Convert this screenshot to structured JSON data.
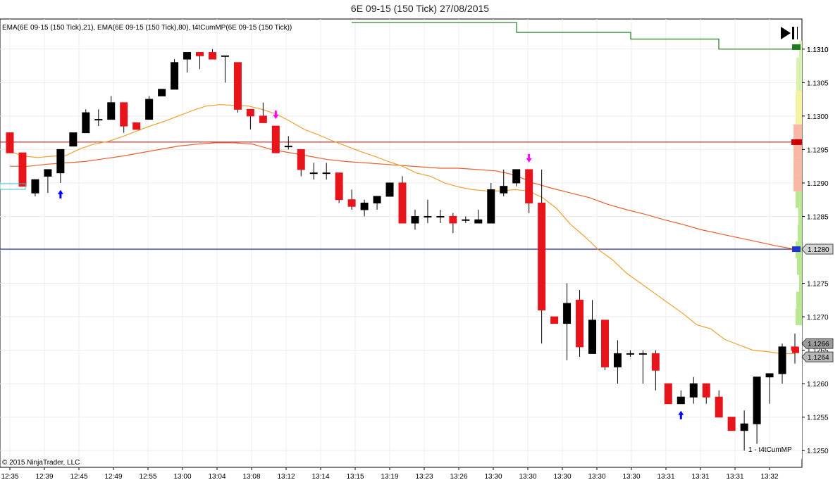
{
  "chart_data": {
    "type": "candlestick",
    "title": "6E 09-15 (150 Tick)  27/08/2015",
    "indicator_label": "EMA(6E 09-15 (150 Tick),21), EMA(6E 09-15 (150 Tick),80), t4tCumMP(6E 09-15 (150 Tick))",
    "copyright": "© 2015 NinjaTrader, LLC",
    "panel_label": "1 - t4tCumMP",
    "ylim": [
      1.12475,
      1.13145
    ],
    "y_ticks": [
      "1.1250",
      "1.1255",
      "1.1260",
      "1.1265",
      "1.1270",
      "1.1275",
      "1.1280",
      "1.1285",
      "1.1290",
      "1.1295",
      "1.1300",
      "1.1305",
      "1.1310"
    ],
    "x_ticks": [
      "12:35",
      "12:39",
      "12:45",
      "12:49",
      "12:55",
      "13:00",
      "13:04",
      "13:08",
      "13:12",
      "13:14",
      "13:15",
      "13:19",
      "13:23",
      "13:26",
      "13:30",
      "13:30",
      "13:30",
      "13:30",
      "13:30",
      "13:31",
      "13:31",
      "13:31",
      "13:32"
    ],
    "price_markers": {
      "green_level": "1.1310",
      "blue_level": "1.1280",
      "current_behind": "1.1266",
      "current": "1.1264"
    },
    "horizontal_lines": [
      {
        "value": 1.12961,
        "color": "#cc0000"
      },
      {
        "value": 1.12801,
        "color": "#00008b"
      }
    ],
    "candles": [
      {
        "o": 1.12975,
        "h": 1.12975,
        "l": 1.12945,
        "c": 1.12945
      },
      {
        "o": 1.12945,
        "h": 1.12945,
        "l": 1.12895,
        "c": 1.12895
      },
      {
        "o": 1.12885,
        "h": 1.12905,
        "l": 1.1288,
        "c": 1.12905
      },
      {
        "o": 1.1291,
        "h": 1.1292,
        "l": 1.12885,
        "c": 1.1292
      },
      {
        "o": 1.12915,
        "h": 1.1295,
        "l": 1.129,
        "c": 1.1295
      },
      {
        "o": 1.12955,
        "h": 1.12975,
        "l": 1.12955,
        "c": 1.12975
      },
      {
        "o": 1.12975,
        "h": 1.1301,
        "l": 1.12975,
        "c": 1.13005
      },
      {
        "o": 1.12995,
        "h": 1.1301,
        "l": 1.12985,
        "c": 1.12995
      },
      {
        "o": 1.12995,
        "h": 1.1303,
        "l": 1.12995,
        "c": 1.1302
      },
      {
        "o": 1.1302,
        "h": 1.1302,
        "l": 1.12975,
        "c": 1.12985
      },
      {
        "o": 1.1299,
        "h": 1.1299,
        "l": 1.1298,
        "c": 1.1298
      },
      {
        "o": 1.12995,
        "h": 1.1303,
        "l": 1.12995,
        "c": 1.13025
      },
      {
        "o": 1.1303,
        "h": 1.1304,
        "l": 1.1303,
        "c": 1.1304
      },
      {
        "o": 1.1304,
        "h": 1.13085,
        "l": 1.1304,
        "c": 1.1308
      },
      {
        "o": 1.13085,
        "h": 1.13095,
        "l": 1.13065,
        "c": 1.13095
      },
      {
        "o": 1.13095,
        "h": 1.13095,
        "l": 1.1307,
        "c": 1.1309
      },
      {
        "o": 1.13095,
        "h": 1.131,
        "l": 1.13085,
        "c": 1.13085
      },
      {
        "o": 1.1309,
        "h": 1.1309,
        "l": 1.1305,
        "c": 1.1309
      },
      {
        "o": 1.1308,
        "h": 1.1308,
        "l": 1.13005,
        "c": 1.1301
      },
      {
        "o": 1.1301,
        "h": 1.1301,
        "l": 1.1298,
        "c": 1.13
      },
      {
        "o": 1.13,
        "h": 1.1302,
        "l": 1.1299,
        "c": 1.1299
      },
      {
        "o": 1.12985,
        "h": 1.12985,
        "l": 1.12945,
        "c": 1.12945
      },
      {
        "o": 1.12955,
        "h": 1.1297,
        "l": 1.1295,
        "c": 1.12955
      },
      {
        "o": 1.1295,
        "h": 1.1295,
        "l": 1.1291,
        "c": 1.1292
      },
      {
        "o": 1.12915,
        "h": 1.1293,
        "l": 1.12905,
        "c": 1.12915
      },
      {
        "o": 1.12915,
        "h": 1.1293,
        "l": 1.12905,
        "c": 1.12915
      },
      {
        "o": 1.12915,
        "h": 1.12915,
        "l": 1.1287,
        "c": 1.12875
      },
      {
        "o": 1.12875,
        "h": 1.1289,
        "l": 1.1286,
        "c": 1.12865
      },
      {
        "o": 1.1286,
        "h": 1.12875,
        "l": 1.1285,
        "c": 1.1287
      },
      {
        "o": 1.1287,
        "h": 1.1288,
        "l": 1.1286,
        "c": 1.1288
      },
      {
        "o": 1.1288,
        "h": 1.129,
        "l": 1.1288,
        "c": 1.129
      },
      {
        "o": 1.129,
        "h": 1.1291,
        "l": 1.1284,
        "c": 1.1284
      },
      {
        "o": 1.1284,
        "h": 1.1286,
        "l": 1.1283,
        "c": 1.1285
      },
      {
        "o": 1.1285,
        "h": 1.12875,
        "l": 1.1284,
        "c": 1.1285
      },
      {
        "o": 1.1285,
        "h": 1.1286,
        "l": 1.1284,
        "c": 1.1285
      },
      {
        "o": 1.1285,
        "h": 1.12855,
        "l": 1.12825,
        "c": 1.1284
      },
      {
        "o": 1.12845,
        "h": 1.1285,
        "l": 1.1284,
        "c": 1.12845
      },
      {
        "o": 1.1284,
        "h": 1.1286,
        "l": 1.1284,
        "c": 1.12845
      },
      {
        "o": 1.1284,
        "h": 1.129,
        "l": 1.1284,
        "c": 1.1289
      },
      {
        "o": 1.12885,
        "h": 1.1292,
        "l": 1.1288,
        "c": 1.12895
      },
      {
        "o": 1.129,
        "h": 1.1292,
        "l": 1.12895,
        "c": 1.1292
      },
      {
        "o": 1.1292,
        "h": 1.1292,
        "l": 1.12855,
        "c": 1.1287
      },
      {
        "o": 1.1287,
        "h": 1.1292,
        "l": 1.1266,
        "c": 1.1271
      },
      {
        "o": 1.127,
        "h": 1.127,
        "l": 1.1269,
        "c": 1.1269
      },
      {
        "o": 1.1269,
        "h": 1.1275,
        "l": 1.12635,
        "c": 1.1272
      },
      {
        "o": 1.12725,
        "h": 1.1274,
        "l": 1.1264,
        "c": 1.12655
      },
      {
        "o": 1.12645,
        "h": 1.12725,
        "l": 1.12645,
        "c": 1.12695
      },
      {
        "o": 1.12695,
        "h": 1.12695,
        "l": 1.1262,
        "c": 1.12625
      },
      {
        "o": 1.12625,
        "h": 1.12665,
        "l": 1.126,
        "c": 1.12645
      },
      {
        "o": 1.12645,
        "h": 1.1265,
        "l": 1.1264,
        "c": 1.12645
      },
      {
        "o": 1.12645,
        "h": 1.1265,
        "l": 1.126,
        "c": 1.12645
      },
      {
        "o": 1.12645,
        "h": 1.1265,
        "l": 1.1259,
        "c": 1.1262
      },
      {
        "o": 1.126,
        "h": 1.126,
        "l": 1.1257,
        "c": 1.1257
      },
      {
        "o": 1.1257,
        "h": 1.1259,
        "l": 1.1257,
        "c": 1.1258
      },
      {
        "o": 1.1258,
        "h": 1.1261,
        "l": 1.1257,
        "c": 1.126
      },
      {
        "o": 1.126,
        "h": 1.126,
        "l": 1.1257,
        "c": 1.1258
      },
      {
        "o": 1.1258,
        "h": 1.1259,
        "l": 1.1255,
        "c": 1.1255
      },
      {
        "o": 1.1255,
        "h": 1.1255,
        "l": 1.1253,
        "c": 1.1253
      },
      {
        "o": 1.1253,
        "h": 1.1256,
        "l": 1.125,
        "c": 1.1254
      },
      {
        "o": 1.1254,
        "h": 1.1261,
        "l": 1.1251,
        "c": 1.1261
      },
      {
        "o": 1.1261,
        "h": 1.12615,
        "l": 1.1257,
        "c": 1.12615
      },
      {
        "o": 1.12615,
        "h": 1.1266,
        "l": 1.126,
        "c": 1.12655
      },
      {
        "o": 1.12655,
        "h": 1.12675,
        "l": 1.1263,
        "c": 1.1265
      }
    ],
    "ema_21": [
      1.12947,
      1.1294,
      1.12938,
      1.1294,
      1.12941,
      1.12951,
      1.12958,
      1.12962,
      1.12969,
      1.12977,
      1.12985,
      1.12992,
      1.13,
      1.13008,
      1.13015,
      1.13017,
      1.13016,
      1.13015,
      1.1301,
      1.13003,
      1.12992,
      1.1298,
      1.12972,
      1.12963,
      1.12955,
      1.12947,
      1.1294,
      1.12932,
      1.12925,
      1.12915,
      1.1291,
      1.129,
      1.12894,
      1.1289,
      1.12888,
      1.12888,
      1.1289,
      1.12888,
      1.12878,
      1.12862,
      1.12838,
      1.1282,
      1.128,
      1.12785,
      1.12765,
      1.1275,
      1.12735,
      1.1272,
      1.12705,
      1.12688,
      1.12682,
      1.12666,
      1.12658,
      1.1265,
      1.12648,
      1.12645,
      1.12645
    ],
    "ema_80": [
      1.12925,
      1.12925,
      1.12928,
      1.1293,
      1.12932,
      1.12936,
      1.1294,
      1.12945,
      1.1295,
      1.12955,
      1.12958,
      1.1296,
      1.1296,
      1.12958,
      1.1295,
      1.12945,
      1.1294,
      1.12935,
      1.12932,
      1.1293,
      1.12928,
      1.12926,
      1.12924,
      1.12922,
      1.12922,
      1.1292,
      1.12918,
      1.12912,
      1.129,
      1.12892,
      1.12885,
      1.12878,
      1.12868,
      1.1286,
      1.12853,
      1.12845,
      1.12838,
      1.1283,
      1.12824,
      1.12818,
      1.12812,
      1.12806,
      1.12801
    ],
    "signals": [
      {
        "bar": 4,
        "type": "buy"
      },
      {
        "bar": 21,
        "type": "sell"
      },
      {
        "bar": 41,
        "type": "sell"
      },
      {
        "bar": 53,
        "type": "buy"
      }
    ],
    "cum_mp_steps": [
      1.1314,
      1.13125,
      1.13115,
      1.131
    ]
  }
}
